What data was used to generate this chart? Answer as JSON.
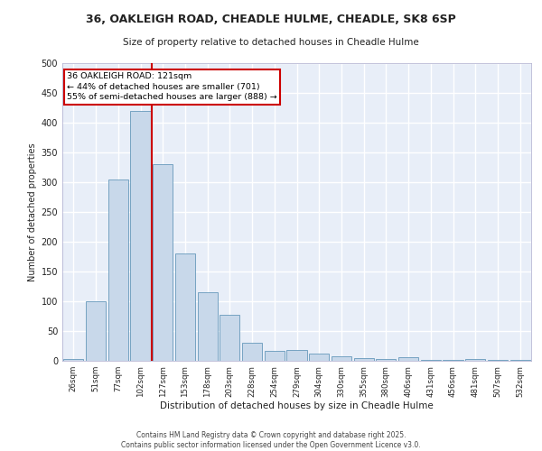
{
  "title": "36, OAKLEIGH ROAD, CHEADLE HULME, CHEADLE, SK8 6SP",
  "subtitle": "Size of property relative to detached houses in Cheadle Hulme",
  "xlabel": "Distribution of detached houses by size in Cheadle Hulme",
  "ylabel": "Number of detached properties",
  "categories": [
    "26sqm",
    "51sqm",
    "77sqm",
    "102sqm",
    "127sqm",
    "153sqm",
    "178sqm",
    "203sqm",
    "228sqm",
    "254sqm",
    "279sqm",
    "304sqm",
    "330sqm",
    "355sqm",
    "380sqm",
    "406sqm",
    "431sqm",
    "456sqm",
    "481sqm",
    "507sqm",
    "532sqm"
  ],
  "values": [
    3,
    100,
    305,
    420,
    330,
    180,
    115,
    77,
    30,
    17,
    18,
    12,
    8,
    5,
    3,
    6,
    2,
    1,
    3,
    1,
    2
  ],
  "bar_color": "#c8d8ea",
  "bar_edge_color": "#6699bb",
  "vline_x": 3.5,
  "vline_color": "#cc0000",
  "annotation_text": "36 OAKLEIGH ROAD: 121sqm\n← 44% of detached houses are smaller (701)\n55% of semi-detached houses are larger (888) →",
  "annotation_box_color": "#ffffff",
  "annotation_box_edge": "#cc0000",
  "bg_color": "#e8eef8",
  "grid_color": "#ffffff",
  "footer": "Contains HM Land Registry data © Crown copyright and database right 2025.\nContains public sector information licensed under the Open Government Licence v3.0.",
  "ylim": [
    0,
    500
  ],
  "yticks": [
    0,
    50,
    100,
    150,
    200,
    250,
    300,
    350,
    400,
    450,
    500
  ]
}
